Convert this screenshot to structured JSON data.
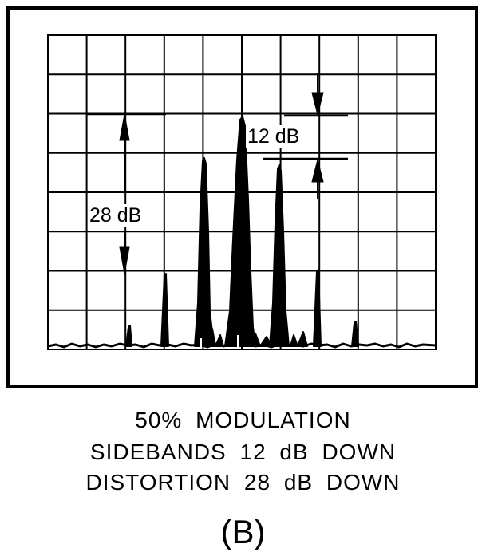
{
  "figure": {
    "annotations": {
      "distortion_measure": "28 dB",
      "sideband_measure": "12 dB"
    },
    "caption": {
      "line1": "50% MODULATION",
      "line2": "SIDEBANDS 12 dB DOWN",
      "line3": "DISTORTION 28 dB DOWN"
    },
    "panel_label": "(B)",
    "colors": {
      "ink": "#000000",
      "background": "#ffffff"
    }
  }
}
